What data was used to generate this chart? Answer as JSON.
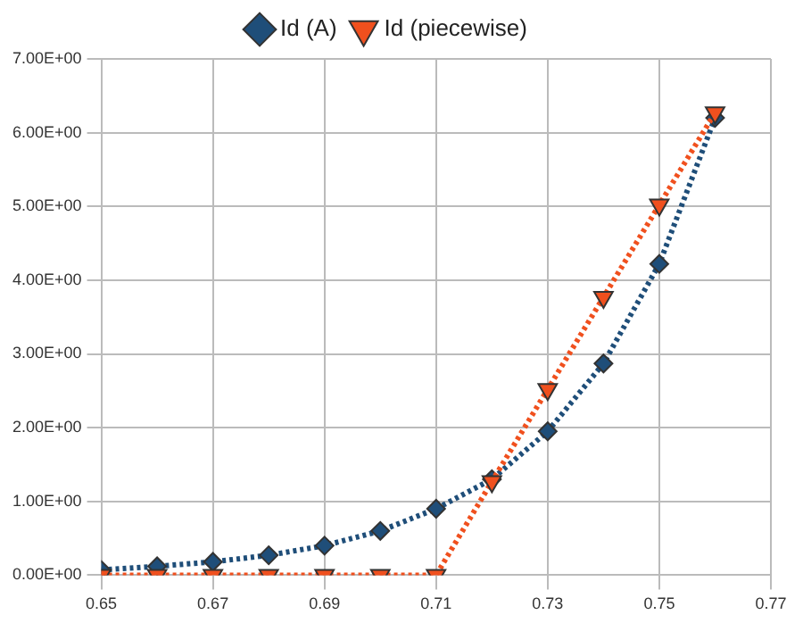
{
  "chart_data": {
    "type": "line",
    "x": [
      0.65,
      0.66,
      0.67,
      0.68,
      0.69,
      0.7,
      0.71,
      0.72,
      0.73,
      0.74,
      0.75,
      0.76
    ],
    "series": [
      {
        "name": "Id (A)",
        "color": "#1f4e79",
        "marker": "diamond",
        "values": [
          0.07,
          0.12,
          0.18,
          0.27,
          0.4,
          0.6,
          0.9,
          1.3,
          1.95,
          2.87,
          4.22,
          6.2
        ]
      },
      {
        "name": "Id (piecewise)",
        "color": "#f0501e",
        "marker": "triangle",
        "values": [
          0,
          0,
          0,
          0,
          0,
          0,
          0,
          1.27,
          2.52,
          3.77,
          5.02,
          6.27
        ]
      }
    ],
    "xlim": [
      0.65,
      0.77
    ],
    "xticks": [
      0.65,
      0.67,
      0.69,
      0.71,
      0.73,
      0.75,
      0.77
    ],
    "ylim": [
      0,
      7
    ],
    "yticks": [
      {
        "value": 0,
        "label": "0.00E+00"
      },
      {
        "value": 1,
        "label": "1.00E+00"
      },
      {
        "value": 2,
        "label": "2.00E+00"
      },
      {
        "value": 3,
        "label": "3.00E+00"
      },
      {
        "value": 4,
        "label": "4.00E+00"
      },
      {
        "value": 5,
        "label": "5.00E+00"
      },
      {
        "value": 6,
        "label": "6.00E+00"
      },
      {
        "value": 7,
        "label": "7.00E+00"
      }
    ],
    "grid": true,
    "legend": "top",
    "line_style": "dotted"
  }
}
